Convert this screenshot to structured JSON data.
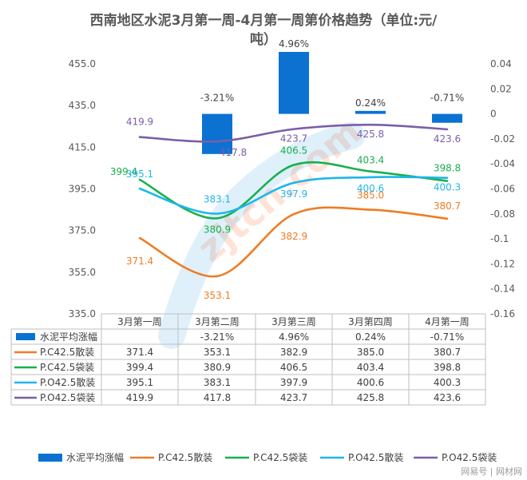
{
  "title": "西南地区水泥3月第一周-4月第一周第价格趋势（单位:元/吨）",
  "title_line1": "西南地区水泥3月第一周-4月第一周第价格趋势（单位:元/",
  "title_line2": "吨）",
  "watermark": "zjtcn.com",
  "source_mark": "网易号 | 网材网",
  "colors": {
    "bar": "#0b72d2",
    "P.C42.5散装": "#ee7d24",
    "P.C42.5袋装": "#19b04c",
    "P.O42.5散装": "#1fb6ea",
    "P.O42.5袋装": "#7a5ea8"
  },
  "chart_data": {
    "type": "bar+line",
    "categories": [
      "3月第一周",
      "3月第二周",
      "3月第三周",
      "3月第四周",
      "4月第一周"
    ],
    "left_axis": {
      "min": 335.0,
      "max": 455.0,
      "ticks": [
        "335.0",
        "355.0",
        "375.0",
        "395.0",
        "415.0",
        "435.0",
        "455.0"
      ]
    },
    "right_axis": {
      "min": -0.16,
      "max": 0.04,
      "ticks": [
        "-0.16",
        "-0.14",
        "-0.12",
        "-0.1",
        "-0.08",
        "-0.06",
        "-0.04",
        "-0.02",
        "0",
        "0.02",
        "0.04"
      ]
    },
    "bar_series": {
      "name": "水泥平均涨幅",
      "values": [
        null,
        -0.0321,
        0.0496,
        0.0024,
        -0.0071
      ],
      "labels": [
        "",
        "-3.21%",
        "4.96%",
        "0.24%",
        "-0.71%"
      ]
    },
    "series": [
      {
        "name": "P.C42.5散装",
        "values": [
          371.4,
          353.1,
          382.9,
          385.0,
          380.7
        ],
        "labels": [
          "371.4",
          "353.1",
          "382.9",
          "385.0",
          "380.7"
        ]
      },
      {
        "name": "P.C42.5袋装",
        "values": [
          399.4,
          380.9,
          406.5,
          403.4,
          398.8
        ],
        "labels": [
          "399.4",
          "380.9",
          "406.5",
          "403.4",
          "398.8"
        ]
      },
      {
        "name": "P.O42.5散装",
        "values": [
          395.1,
          383.1,
          397.9,
          400.6,
          400.3
        ],
        "labels": [
          "395.1",
          "383.1",
          "397.9",
          "400.6",
          "400.3"
        ]
      },
      {
        "name": "P.O42.5袋装",
        "values": [
          419.9,
          417.8,
          423.7,
          425.8,
          423.6
        ],
        "labels": [
          "419.9",
          "417.8",
          "423.7",
          "425.8",
          "423.6"
        ]
      }
    ],
    "table": {
      "header": [
        "",
        "3月第一周",
        "3月第二周",
        "3月第三周",
        "3月第四周",
        "4月第一周"
      ],
      "rows": [
        [
          "水泥平均涨幅",
          "",
          "-3.21%",
          "4.96%",
          "0.24%",
          "-0.71%"
        ],
        [
          "P.C42.5散装",
          "371.4",
          "353.1",
          "382.9",
          "385.0",
          "380.7"
        ],
        [
          "P.C42.5袋装",
          "399.4",
          "380.9",
          "406.5",
          "403.4",
          "398.8"
        ],
        [
          "P.O42.5散装",
          "395.1",
          "383.1",
          "397.9",
          "400.6",
          "400.3"
        ],
        [
          "P.O42.5袋装",
          "419.9",
          "417.8",
          "423.7",
          "425.8",
          "423.6"
        ]
      ]
    },
    "legend": [
      "水泥平均涨幅",
      "P.C42.5散装",
      "P.C42.5袋装",
      "P.O42.5散装",
      "P.O42.5袋装"
    ],
    "legend_position": "bottom"
  }
}
